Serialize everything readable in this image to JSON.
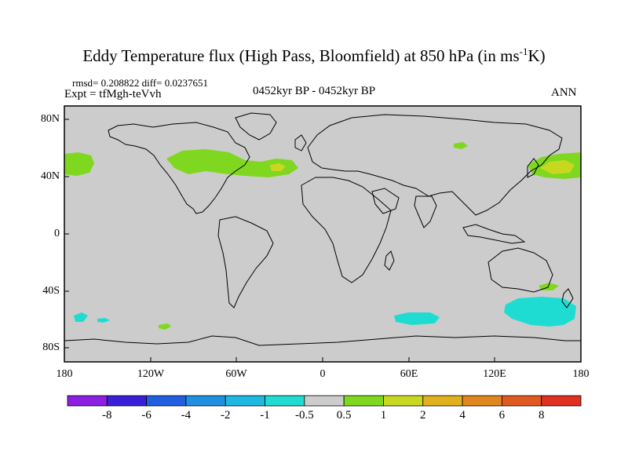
{
  "title_main": "Eddy Temperature flux (High Pass, Bloomfield) at 850 hPa (in ms",
  "title_sup": "-1",
  "title_end": "K)",
  "stats": "rmsd= 0.208822 diff= 0.0237651",
  "expt": "Expt = tfMgh-teVvh",
  "period": "0452kyr BP - 0452kyr BP",
  "season": "ANN",
  "lat_labels": [
    "80N",
    "40N",
    "0",
    "40S",
    "80S"
  ],
  "lon_labels": [
    "180",
    "120W",
    "60W",
    "0",
    "60E",
    "120E",
    "180"
  ],
  "colorbar": {
    "colors": [
      "#8c1fe0",
      "#3a1fd8",
      "#1f5fe0",
      "#1f8fe0",
      "#1fb8e0",
      "#1fdcd2",
      "#cccccc",
      "#7fd81f",
      "#c8d81f",
      "#e0b01f",
      "#e0861f",
      "#e05a1f",
      "#e0301f"
    ],
    "labels": [
      "-8",
      "-6",
      "-4",
      "-2",
      "-1",
      "-0.5",
      "0.5",
      "1",
      "2",
      "4",
      "6",
      "8"
    ]
  },
  "colors": {
    "land_sea_background": "#cccccc",
    "positive_weak": "#7fd81f",
    "positive_mid": "#c8d81f",
    "negative_weak": "#1fdcd2"
  }
}
